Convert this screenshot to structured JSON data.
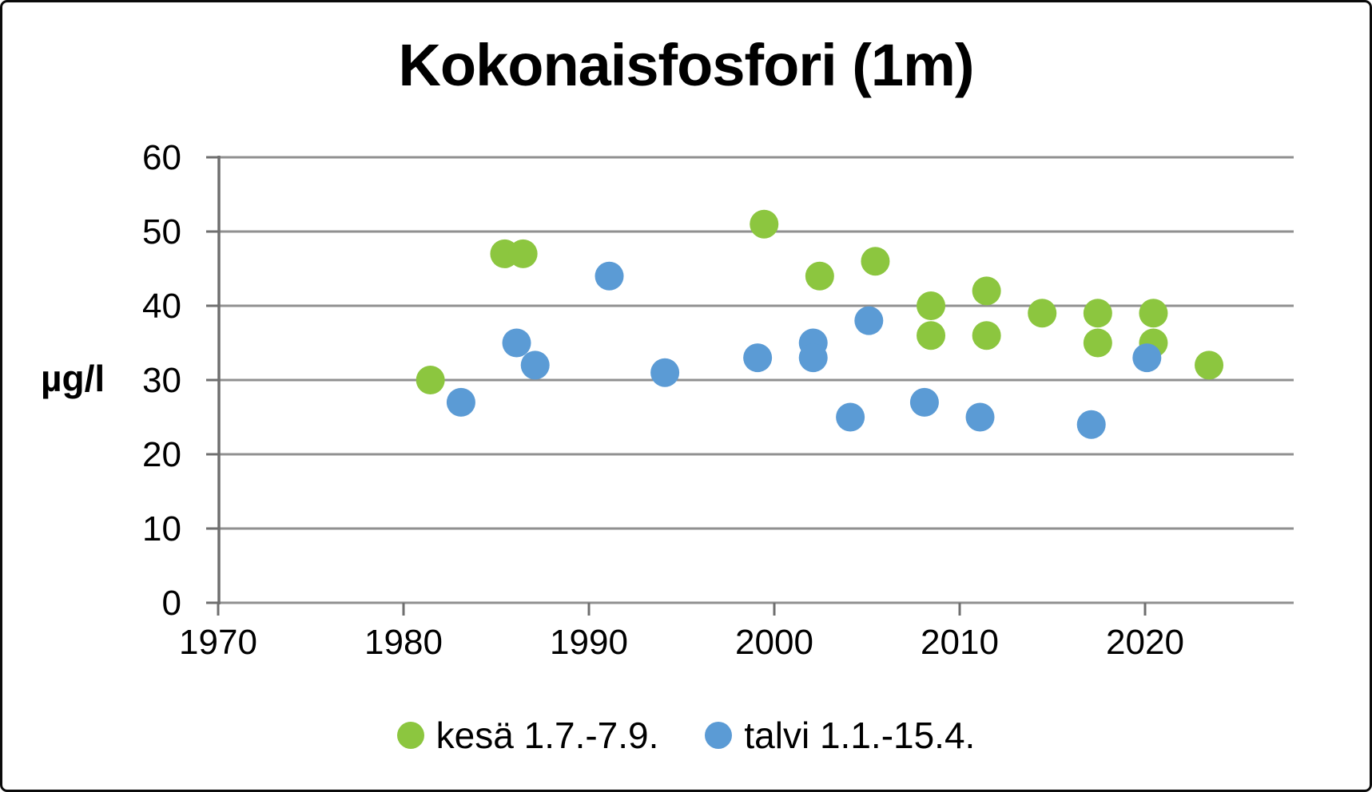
{
  "chart_data": {
    "type": "scatter",
    "title": "Kokonaisfosfori (1m)",
    "ylabel": "µg/l",
    "xlabel": "",
    "xlim": [
      1970,
      2028
    ],
    "ylim": [
      0,
      60
    ],
    "xticks": [
      1970,
      1980,
      1990,
      2000,
      2010,
      2020
    ],
    "yticks": [
      0,
      10,
      20,
      30,
      40,
      50,
      60
    ],
    "grid": "horizontal-only",
    "legend_position": "bottom",
    "series": [
      {
        "name": "kesä 1.7.-7.9.",
        "color": "#8CC63F",
        "points": [
          [
            1981,
            30
          ],
          [
            1985,
            47
          ],
          [
            1986,
            47
          ],
          [
            1999,
            51
          ],
          [
            2002,
            44
          ],
          [
            2005,
            46
          ],
          [
            2008,
            40
          ],
          [
            2008,
            36
          ],
          [
            2011,
            42
          ],
          [
            2011,
            36
          ],
          [
            2014,
            39
          ],
          [
            2017,
            39
          ],
          [
            2017,
            35
          ],
          [
            2020,
            39
          ],
          [
            2020,
            35
          ],
          [
            2023,
            32
          ]
        ]
      },
      {
        "name": "talvi 1.1.-15.4.",
        "color": "#5B9BD5",
        "points": [
          [
            1983,
            27
          ],
          [
            1986,
            35
          ],
          [
            1987,
            32
          ],
          [
            1991,
            44
          ],
          [
            1994,
            31
          ],
          [
            1999,
            33
          ],
          [
            2002,
            35
          ],
          [
            2002,
            33
          ],
          [
            2004,
            25
          ],
          [
            2005,
            38
          ],
          [
            2008,
            27
          ],
          [
            2011,
            25
          ],
          [
            2017,
            24
          ],
          [
            2020,
            33
          ]
        ]
      }
    ]
  },
  "colors": {
    "gridline": "#909090",
    "axis": "#6F6F6F",
    "tick_label": "#000000",
    "background": "#FFFFFF",
    "border": "#0B0B0B"
  }
}
